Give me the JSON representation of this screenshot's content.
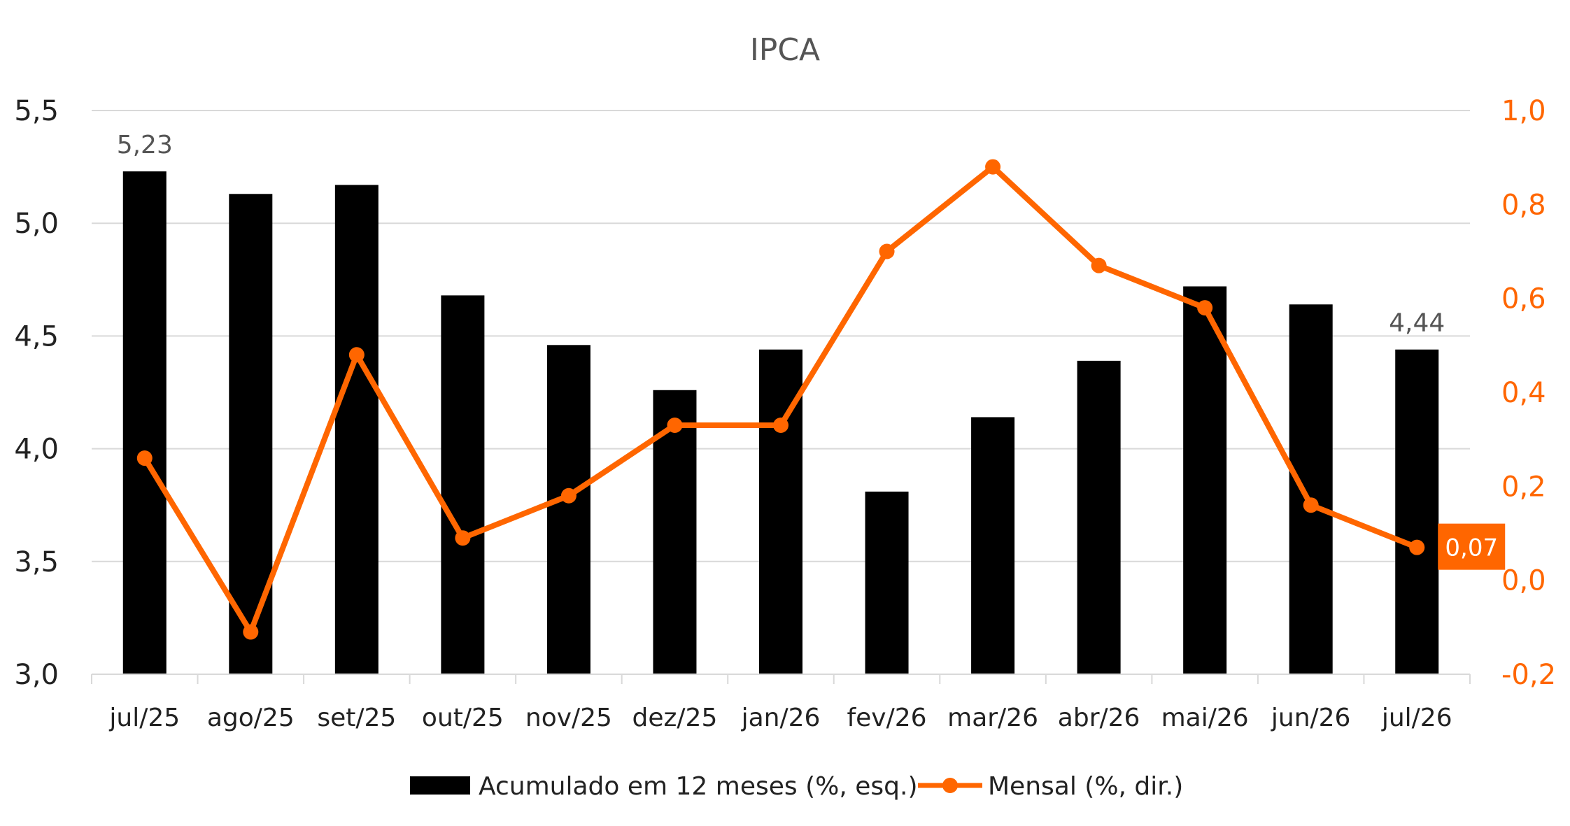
{
  "chart_data": {
    "type": "bar",
    "title": "IPCA",
    "categories": [
      "jul/25",
      "ago/25",
      "set/25",
      "out/25",
      "nov/25",
      "dez/25",
      "jan/26",
      "fev/26",
      "mar/26",
      "abr/26",
      "mai/26",
      "jun/26",
      "jul/26"
    ],
    "series": [
      {
        "name": "Acumulado em 12 meses (%, esq.)",
        "type": "bar",
        "axis": "left",
        "color": "#000000",
        "values": [
          5.23,
          5.13,
          5.17,
          4.68,
          4.46,
          4.26,
          4.44,
          3.81,
          4.14,
          4.39,
          4.72,
          4.64,
          4.44
        ]
      },
      {
        "name": "Mensal (%, dir.)",
        "type": "line",
        "axis": "right",
        "color": "#ff6600",
        "values": [
          0.26,
          -0.11,
          0.48,
          0.09,
          0.18,
          0.33,
          0.33,
          0.7,
          0.88,
          0.67,
          0.58,
          0.16,
          0.07
        ]
      }
    ],
    "y_left": {
      "min": 3.0,
      "max": 5.5,
      "ticks": [
        "3,0",
        "3,5",
        "4,0",
        "4,5",
        "5,0",
        "5,5"
      ],
      "tick_values": [
        3.0,
        3.5,
        4.0,
        4.5,
        5.0,
        5.5
      ]
    },
    "y_right": {
      "min": -0.2,
      "max": 1.0,
      "ticks": [
        "-0,2",
        "0,0",
        "0,2",
        "0,4",
        "0,6",
        "0,8",
        "1,0"
      ],
      "tick_values": [
        -0.2,
        0.0,
        0.2,
        0.4,
        0.6,
        0.8,
        1.0
      ]
    },
    "annotations": [
      {
        "series": 0,
        "index": 0,
        "text": "5,23"
      },
      {
        "series": 0,
        "index": 12,
        "text": "4,44"
      },
      {
        "series": 1,
        "index": 12,
        "text": "0,07",
        "boxed": true
      }
    ],
    "grid": true,
    "legend": "bottom"
  }
}
